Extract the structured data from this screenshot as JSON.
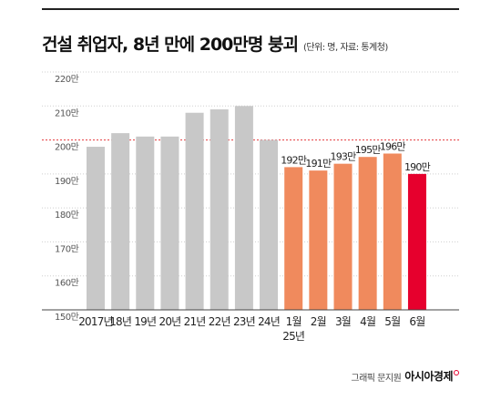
{
  "chart_data": {
    "type": "bar",
    "title": "건설 취업자, 8년 만에 200만명 붕괴",
    "unit_note": "(단위: 명, 자료: 통계청)",
    "categories": [
      "2017년",
      "18년",
      "19년",
      "20년",
      "21년",
      "22년",
      "23년",
      "24년",
      "1월",
      "2월",
      "3월",
      "4월",
      "5월",
      "6월"
    ],
    "sub_labels": [
      "",
      "",
      "",
      "",
      "",
      "",
      "",
      "",
      "25년",
      "",
      "",
      "",
      "",
      ""
    ],
    "values": [
      198,
      202,
      201,
      201,
      208,
      209,
      210,
      200,
      192,
      191,
      193,
      195,
      196,
      190
    ],
    "data_labels": [
      "",
      "",
      "",
      "",
      "",
      "",
      "",
      "",
      "192만",
      "191만",
      "193만",
      "195만",
      "196만",
      "190만"
    ],
    "ylim": [
      150,
      220
    ],
    "yticks": [
      150,
      160,
      170,
      180,
      190,
      200,
      210,
      220
    ],
    "ytick_labels": [
      "150만",
      "160만",
      "170만",
      "180만",
      "190만",
      "200만",
      "210만",
      "220만"
    ],
    "highlight_line": 200,
    "colors": {
      "annual": "#c8c8c8",
      "monthly": "#f08a5d",
      "latest": "#e6002d",
      "grid": "#cfcfcf",
      "highlight": "#e4393c"
    },
    "legend": "none",
    "grid": true
  },
  "footer": {
    "credit": "그래픽 문지원",
    "brand": "아시아경제"
  }
}
